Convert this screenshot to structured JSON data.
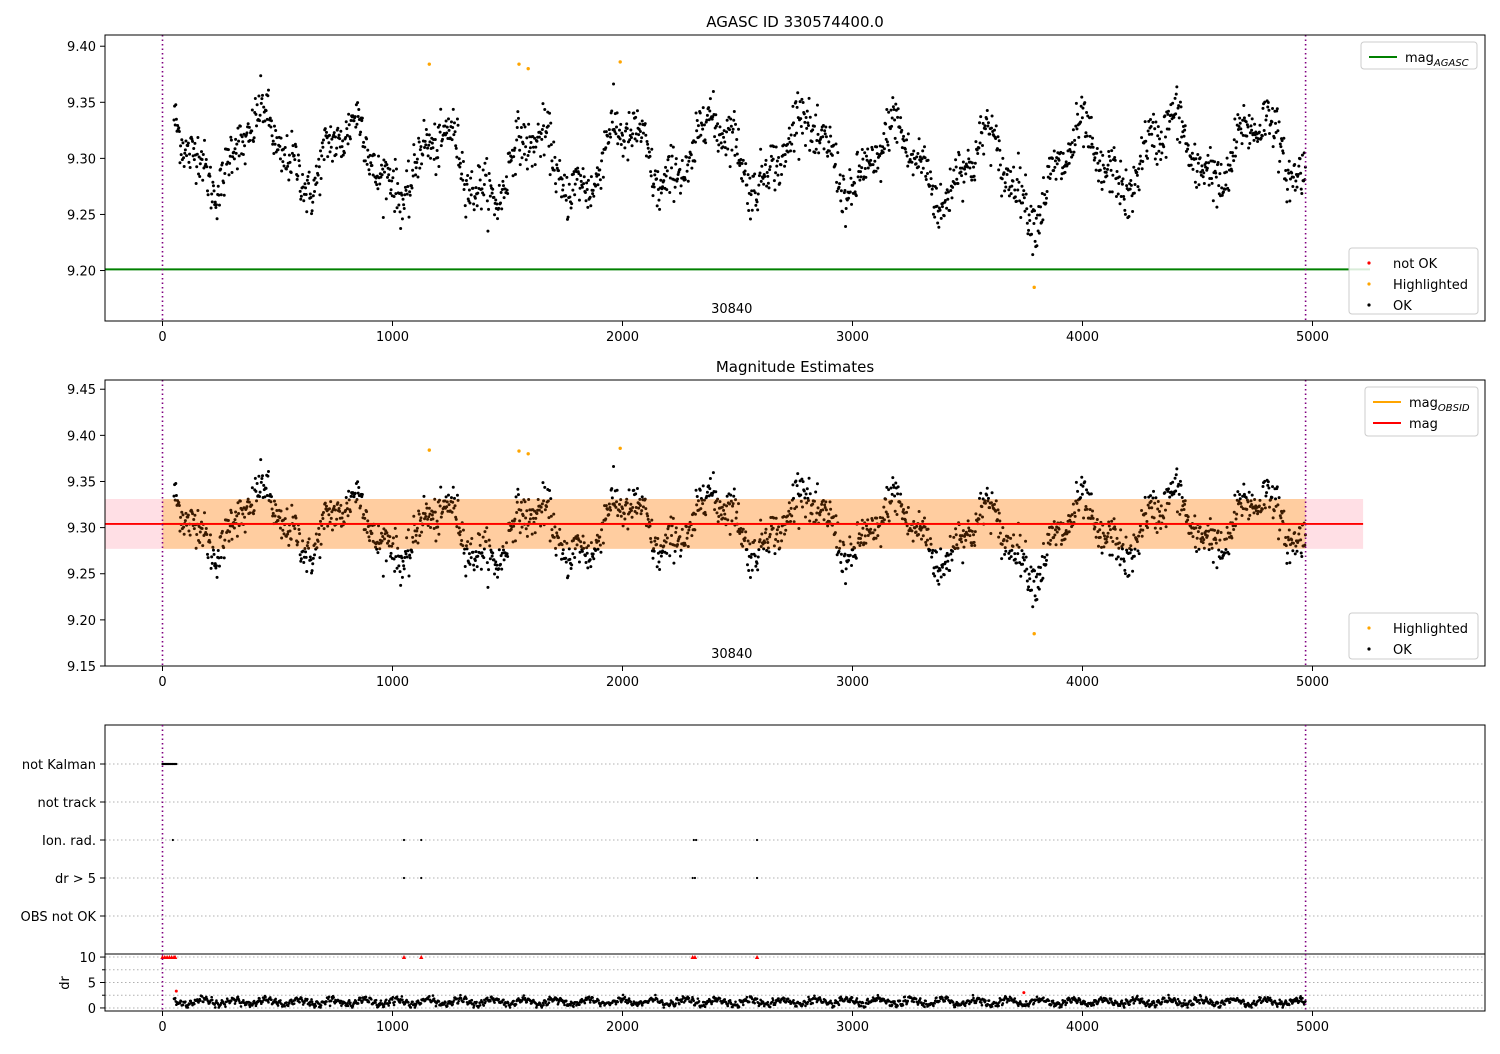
{
  "chart_data": [
    {
      "type": "scatter",
      "title": "AGASC ID 330574400.0",
      "xlim": [
        -250,
        5750
      ],
      "ylim": [
        9.155,
        9.41
      ],
      "xticks": [
        0,
        1000,
        2000,
        3000,
        4000,
        5000
      ],
      "yticks": [
        9.2,
        9.25,
        9.3,
        9.35,
        9.4
      ],
      "ytick_labels": [
        "9.20",
        "9.25",
        "9.30",
        "9.35",
        "9.40"
      ],
      "x_range_of_points": [
        50,
        4970
      ],
      "obsid_label": "30840",
      "obsid_label_x": 2475,
      "obsid_boundaries": [
        0,
        4970
      ],
      "mag_agasc": 9.201,
      "mag_agasc_x_range": [
        -250,
        5250
      ],
      "highlighted_points": [
        {
          "x": 1160,
          "y": 9.384
        },
        {
          "x": 1550,
          "y": 9.384
        },
        {
          "x": 1590,
          "y": 9.38
        },
        {
          "x": 1990,
          "y": 9.386
        },
        {
          "x": 3790,
          "y": 9.185
        }
      ],
      "legend_top": {
        "position": "top-right",
        "entries": [
          {
            "label": "mag",
            "sub": "AGASC",
            "color": "#008000"
          }
        ]
      },
      "legend_bottom": {
        "position": "lower-right",
        "entries": [
          {
            "label": "not OK",
            "color": "#ff0000"
          },
          {
            "label": "Highlighted",
            "color": "#ffa500"
          },
          {
            "label": "OK",
            "color": "#000000"
          }
        ]
      }
    },
    {
      "type": "scatter",
      "title": "Magnitude Estimates",
      "xlim": [
        -250,
        5750
      ],
      "ylim": [
        9.15,
        9.46
      ],
      "xticks": [
        0,
        1000,
        2000,
        3000,
        4000,
        5000
      ],
      "yticks": [
        9.15,
        9.2,
        9.25,
        9.3,
        9.35,
        9.4,
        9.45
      ],
      "ytick_labels": [
        "9.15",
        "9.20",
        "9.25",
        "9.30",
        "9.35",
        "9.40",
        "9.45"
      ],
      "obsid_label": "30840",
      "obsid_label_x": 2475,
      "obsid_boundaries": [
        0,
        4970
      ],
      "mag": 9.304,
      "mag_band": [
        9.277,
        9.331
      ],
      "mag_x_range": [
        -250,
        5220
      ],
      "highlighted_points": [
        {
          "x": 1160,
          "y": 9.384
        },
        {
          "x": 1550,
          "y": 9.383
        },
        {
          "x": 1590,
          "y": 9.38
        },
        {
          "x": 1990,
          "y": 9.386
        },
        {
          "x": 3790,
          "y": 9.185
        }
      ],
      "legend_top": {
        "position": "top-right",
        "entries": [
          {
            "label": "mag",
            "sub": "OBSID",
            "color": "#ffa500"
          },
          {
            "label": "mag",
            "sub": "",
            "color": "#ff0000"
          }
        ]
      },
      "legend_bottom": {
        "position": "lower-right",
        "entries": [
          {
            "label": "Highlighted",
            "color": "#ffa500"
          },
          {
            "label": "OK",
            "color": "#000000"
          }
        ]
      }
    },
    {
      "type": "scatter",
      "xlim": [
        -250,
        5750
      ],
      "categories": [
        "not Kalman",
        "not track",
        "Ion. rad.",
        "dr > 5",
        "OBS not OK"
      ],
      "flags": {
        "not Kalman": {
          "x_range": [
            0,
            60
          ]
        },
        "not track": {
          "x": []
        },
        "Ion. rad.": {
          "x": [
            45,
            1050,
            1125,
            2310,
            2320,
            2585
          ]
        },
        "dr > 5": {
          "x": [
            1050,
            1125,
            2305,
            2315,
            2585
          ]
        },
        "OBS not OK": {
          "x": []
        }
      },
      "obsid_boundaries": [
        0,
        4970
      ]
    },
    {
      "type": "scatter",
      "ylabel": "dr",
      "xlim": [
        -250,
        5750
      ],
      "ylim": [
        -0.6,
        10.6
      ],
      "xticks": [
        0,
        1000,
        2000,
        3000,
        4000,
        5000
      ],
      "yticks": [
        0,
        5,
        10
      ],
      "ytick_labels": [
        "0",
        "5",
        "10"
      ],
      "capped_value": 10,
      "capped_points_x": [
        0,
        10,
        20,
        30,
        40,
        50,
        55,
        1050,
        1125,
        2305,
        2315,
        2585
      ],
      "outliers": [
        {
          "x": 60,
          "y": 3.3
        },
        {
          "x": 3745,
          "y": 3.0
        }
      ],
      "obsid_boundaries": [
        0,
        4970
      ]
    }
  ]
}
